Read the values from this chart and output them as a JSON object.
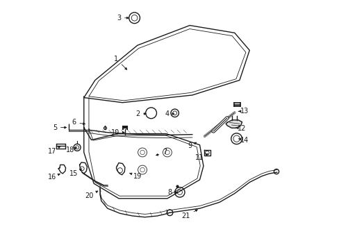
{
  "background_color": "#ffffff",
  "line_color": "#1a1a1a",
  "label_color": "#1a1a1a",
  "figsize": [
    4.89,
    3.6
  ],
  "dpi": 100,
  "labels": {
    "1": [
      0.285,
      0.765,
      0.335,
      0.715
    ],
    "2": [
      0.37,
      0.545,
      0.415,
      0.545
    ],
    "3": [
      0.295,
      0.93,
      0.345,
      0.93
    ],
    "4": [
      0.49,
      0.545,
      0.52,
      0.545
    ],
    "5": [
      0.038,
      0.49,
      0.095,
      0.49
    ],
    "6": [
      0.115,
      0.51,
      0.17,
      0.503
    ],
    "7": [
      0.48,
      0.39,
      0.435,
      0.375
    ],
    "8": [
      0.5,
      0.23,
      0.54,
      0.23
    ],
    "9": [
      0.58,
      0.415,
      0.615,
      0.435
    ],
    "10": [
      0.28,
      0.47,
      0.32,
      0.47
    ],
    "11": [
      0.62,
      0.37,
      0.655,
      0.385
    ],
    "12": [
      0.79,
      0.485,
      0.765,
      0.49
    ],
    "13": [
      0.8,
      0.555,
      0.775,
      0.555
    ],
    "14": [
      0.8,
      0.44,
      0.775,
      0.445
    ],
    "15": [
      0.115,
      0.305,
      0.148,
      0.325
    ],
    "16": [
      0.028,
      0.29,
      0.068,
      0.308
    ],
    "17": [
      0.028,
      0.395,
      0.062,
      0.415
    ],
    "18": [
      0.1,
      0.4,
      0.128,
      0.41
    ],
    "19": [
      0.37,
      0.295,
      0.33,
      0.31
    ],
    "20": [
      0.175,
      0.215,
      0.22,
      0.24
    ],
    "21": [
      0.565,
      0.135,
      0.62,
      0.165
    ]
  }
}
